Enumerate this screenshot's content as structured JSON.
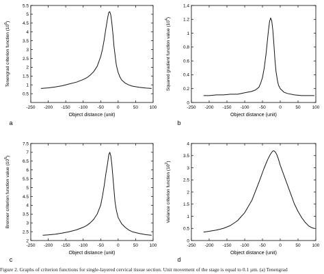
{
  "figure": {
    "caption": "Figure 2.   Graphs of criterion functions for single-layered cervical tissue section. Unit movement of the stage is equal to 0.1 µm. (a) Tenengrad"
  },
  "chart_data": [
    {
      "type": "line",
      "panel_label": "a",
      "xlabel": "Object distance (unit)",
      "ylabel": "Tenengrad criterion function (10^6)",
      "xlim": [
        -250,
        100
      ],
      "ylim": [
        0,
        5.5
      ],
      "xticks": [
        -250,
        -200,
        -150,
        -100,
        -50,
        0,
        50,
        100
      ],
      "xtick_labels": [
        "-250",
        "-200",
        "-150",
        "-100",
        "-50",
        "0",
        "50",
        "100"
      ],
      "yticks": [
        0.5,
        1,
        1.5,
        2,
        2.5,
        3,
        3.5,
        4,
        4.5,
        5,
        5.5
      ],
      "ytick_labels": [
        "0.5",
        "1",
        "1.5",
        "2",
        "2.5",
        "3",
        "3.5",
        "4",
        "4.5",
        "5",
        "5.5"
      ],
      "grid": false,
      "series": [
        {
          "x": [
            -220,
            -200,
            -180,
            -160,
            -140,
            -120,
            -100,
            -90,
            -80,
            -70,
            -60,
            -50,
            -45,
            -40,
            -35,
            -30,
            -27,
            -24,
            -21,
            -18,
            -15,
            -12,
            -8,
            -5,
            0,
            5,
            10,
            20,
            30,
            40,
            60,
            80,
            95
          ],
          "y": [
            0.8,
            0.83,
            0.88,
            0.95,
            1.05,
            1.15,
            1.3,
            1.4,
            1.55,
            1.75,
            2.05,
            2.6,
            3.0,
            3.55,
            4.2,
            4.8,
            5.1,
            5.15,
            4.95,
            4.5,
            3.9,
            3.2,
            2.55,
            2.1,
            1.7,
            1.45,
            1.28,
            1.1,
            1.0,
            0.93,
            0.86,
            0.82,
            0.8
          ]
        }
      ]
    },
    {
      "type": "line",
      "panel_label": "b",
      "xlabel": "Object distance (unit)",
      "ylabel": "Squared gradient function value (10^4)",
      "xlim": [
        -250,
        100
      ],
      "ylim": [
        0,
        1.4
      ],
      "xticks": [
        -250,
        -200,
        -150,
        -100,
        -50,
        0,
        50,
        100
      ],
      "xtick_labels": [
        "-250",
        "-200",
        "-150",
        "-100",
        "-50",
        "0",
        "50",
        "100"
      ],
      "yticks": [
        0,
        0.2,
        0.4,
        0.6,
        0.8,
        1,
        1.2,
        1.4
      ],
      "ytick_labels": [
        "0",
        "0.2",
        "0.4",
        "0.6",
        "0.8",
        "1",
        "1.2",
        "1.4"
      ],
      "grid": false,
      "series": [
        {
          "x": [
            -215,
            -200,
            -180,
            -160,
            -140,
            -120,
            -100,
            -80,
            -70,
            -60,
            -55,
            -50,
            -45,
            -40,
            -36,
            -33,
            -30,
            -27,
            -24,
            -21,
            -18,
            -15,
            -12,
            -8,
            -5,
            0,
            10,
            20,
            40,
            60,
            80,
            95
          ],
          "y": [
            0.1,
            0.1,
            0.11,
            0.11,
            0.12,
            0.12,
            0.14,
            0.16,
            0.18,
            0.22,
            0.28,
            0.36,
            0.5,
            0.7,
            0.9,
            1.05,
            1.17,
            1.22,
            1.18,
            1.05,
            0.85,
            0.62,
            0.45,
            0.32,
            0.25,
            0.2,
            0.15,
            0.13,
            0.11,
            0.1,
            0.1,
            0.1
          ]
        }
      ]
    },
    {
      "type": "line",
      "panel_label": "c",
      "xlabel": "Object distance (unit)",
      "ylabel": "Brenner criterion function value (10^6)",
      "xlim": [
        -250,
        100
      ],
      "ylim": [
        2,
        7.5
      ],
      "xticks": [
        -250,
        -200,
        -150,
        -100,
        -50,
        0,
        50,
        100
      ],
      "xtick_labels": [
        "-250",
        "-200",
        "-150",
        "-100",
        "-50",
        "0",
        "50",
        "100"
      ],
      "yticks": [
        2,
        2.5,
        3,
        3.5,
        4,
        4.5,
        5,
        5.5,
        6,
        6.5,
        7,
        7.5
      ],
      "ytick_labels": [
        "2",
        "2.5",
        "3",
        "3.5",
        "4",
        "4.5",
        "5",
        "5.5",
        "6",
        "6.5",
        "7",
        "7.5"
      ],
      "grid": false,
      "series": [
        {
          "x": [
            -215,
            -200,
            -180,
            -160,
            -140,
            -120,
            -100,
            -90,
            -80,
            -70,
            -60,
            -50,
            -45,
            -40,
            -35,
            -30,
            -27,
            -24,
            -21,
            -18,
            -15,
            -12,
            -9,
            -5,
            0,
            10,
            20,
            30,
            40,
            60,
            80,
            95
          ],
          "y": [
            2.3,
            2.32,
            2.36,
            2.42,
            2.5,
            2.6,
            2.75,
            2.85,
            3.0,
            3.2,
            3.5,
            4.0,
            4.5,
            5.1,
            5.8,
            6.4,
            6.85,
            7.0,
            6.8,
            6.3,
            5.6,
            4.9,
            4.2,
            3.7,
            3.3,
            2.95,
            2.75,
            2.6,
            2.5,
            2.4,
            2.33,
            2.3
          ]
        }
      ]
    },
    {
      "type": "line",
      "panel_label": "d",
      "xlabel": "Object distance (unit)",
      "ylabel": "Variance criterion function (10^2)",
      "xlim": [
        -250,
        100
      ],
      "ylim": [
        0,
        4
      ],
      "xticks": [
        -250,
        -200,
        -150,
        -100,
        -50,
        0,
        50,
        100
      ],
      "xtick_labels": [
        "-250",
        "-200",
        "-150",
        "-100",
        "-50",
        "0",
        "50",
        "100"
      ],
      "yticks": [
        0,
        0.5,
        1,
        1.5,
        2,
        2.5,
        3,
        3.5,
        4
      ],
      "ytick_labels": [
        "0",
        "0.5",
        "1",
        "1.5",
        "2",
        "2.5",
        "3",
        "3.5",
        "4"
      ],
      "grid": false,
      "series": [
        {
          "x": [
            -215,
            -200,
            -180,
            -160,
            -140,
            -120,
            -100,
            -80,
            -60,
            -45,
            -35,
            -28,
            -22,
            -18,
            -14,
            -10,
            -5,
            0,
            10,
            20,
            30,
            40,
            50,
            60,
            70,
            80,
            90,
            95
          ],
          "y": [
            0.35,
            0.38,
            0.43,
            0.5,
            0.62,
            0.82,
            1.15,
            1.65,
            2.4,
            3.0,
            3.35,
            3.55,
            3.68,
            3.7,
            3.65,
            3.55,
            3.35,
            3.1,
            2.7,
            2.3,
            1.9,
            1.5,
            1.2,
            0.95,
            0.75,
            0.6,
            0.52,
            0.5
          ]
        }
      ]
    }
  ]
}
